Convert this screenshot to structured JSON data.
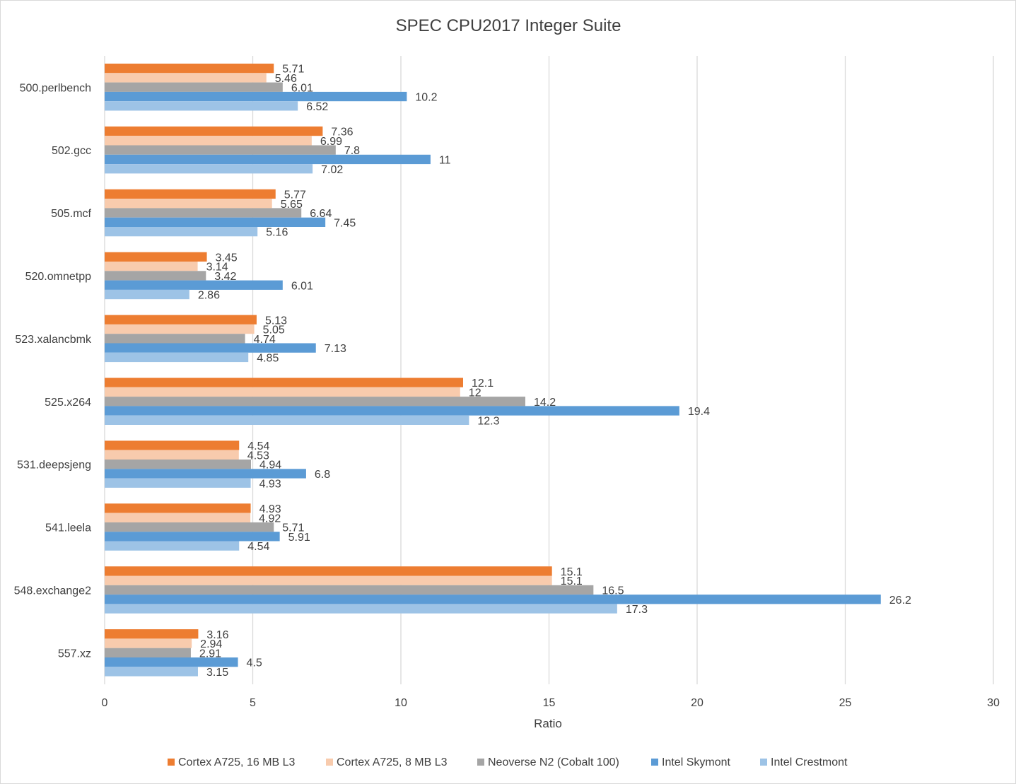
{
  "chart_data": {
    "type": "bar",
    "orientation": "horizontal",
    "title": "SPEC CPU2017 Integer Suite",
    "xlabel": "Ratio",
    "ylabel": "",
    "xlim": [
      0,
      30
    ],
    "xticks": [
      0,
      5,
      10,
      15,
      20,
      25,
      30
    ],
    "grid": true,
    "legend_position": "bottom",
    "categories": [
      "500.perlbench",
      "502.gcc",
      "505.mcf",
      "520.omnetpp",
      "523.xalancbmk",
      "525.x264",
      "531.deepsjeng",
      "541.leela",
      "548.exchange2",
      "557.xz"
    ],
    "series": [
      {
        "name": "Cortex A725, 16 MB L3",
        "color": "#ed7d31",
        "values": [
          5.71,
          7.36,
          5.77,
          3.45,
          5.13,
          12.1,
          4.54,
          4.93,
          15.1,
          3.16
        ],
        "labels": [
          "5.71",
          "7.36",
          "5.77",
          "3.45",
          "5.13",
          "12.1",
          "4.54",
          "4.93",
          "15.1",
          "3.16"
        ]
      },
      {
        "name": "Cortex A725, 8 MB L3",
        "color": "#f8cbad",
        "values": [
          5.46,
          6.99,
          5.65,
          3.14,
          5.05,
          12,
          4.53,
          4.92,
          15.1,
          2.94
        ],
        "labels": [
          "5.46",
          "6.99",
          "5.65",
          "3.14",
          "5.05",
          "12",
          "4.53",
          "4.92",
          "15.1",
          "2.94"
        ]
      },
      {
        "name": "Neoverse N2 (Cobalt 100)",
        "color": "#a5a5a5",
        "values": [
          6.01,
          7.8,
          6.64,
          3.42,
          4.74,
          14.2,
          4.94,
          5.71,
          16.5,
          2.91
        ],
        "labels": [
          "6.01",
          "7.8",
          "6.64",
          "3.42",
          "4.74",
          "14.2",
          "4.94",
          "5.71",
          "16.5",
          "2.91"
        ]
      },
      {
        "name": "Intel Skymont",
        "color": "#5b9bd5",
        "values": [
          10.2,
          11,
          7.45,
          6.01,
          7.13,
          19.4,
          6.8,
          5.91,
          26.2,
          4.5
        ],
        "labels": [
          "10.2",
          "11",
          "7.45",
          "6.01",
          "7.13",
          "19.4",
          "6.8",
          "5.91",
          "26.2",
          "4.5"
        ]
      },
      {
        "name": "Intel Crestmont",
        "color": "#9dc3e6",
        "values": [
          6.52,
          7.02,
          5.16,
          2.86,
          4.85,
          12.3,
          4.93,
          4.54,
          17.3,
          3.15
        ],
        "labels": [
          "6.52",
          "7.02",
          "5.16",
          "2.86",
          "4.85",
          "12.3",
          "4.93",
          "4.54",
          "17.3",
          "3.15"
        ]
      }
    ]
  }
}
